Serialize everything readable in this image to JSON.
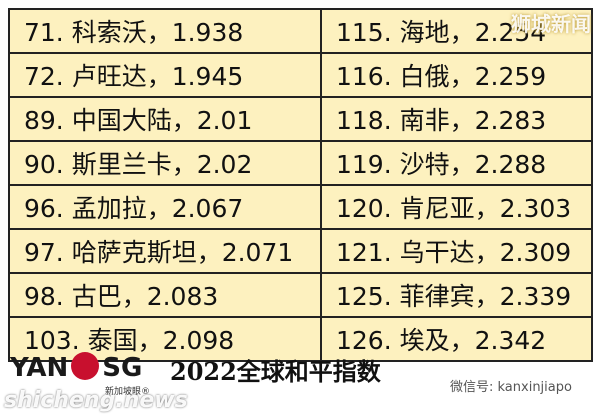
{
  "table": {
    "rows": [
      [
        "71. 科索沃，1.938",
        "115. 海地，2.254"
      ],
      [
        "72. 卢旺达，1.945",
        "116. 白俄，2.259"
      ],
      [
        "89. 中国大陆，2.01",
        "118. 南非，2.283"
      ],
      [
        "90. 斯里兰卡，2.02",
        "119. 沙特，2.288"
      ],
      [
        "96. 孟加拉，2.067",
        "120. 肯尼亚，2.303"
      ],
      [
        "97. 哈萨克斯坦，2.071",
        "121. 乌干达，2.309"
      ],
      [
        "98. 古巴，2.083",
        "125. 菲律宾，2.339"
      ],
      [
        "103. 泰国，2.098",
        "126. 埃及，2.342"
      ]
    ]
  },
  "footer": {
    "title": "2022全球和平指数",
    "logo_left": "YAN",
    "logo_right": "SG",
    "logo_sub": "新加坡眼®",
    "wechat": "微信号: kanxinjiapo"
  },
  "watermarks": {
    "top": "狮城新闻",
    "bottom": "shicheng.news"
  }
}
